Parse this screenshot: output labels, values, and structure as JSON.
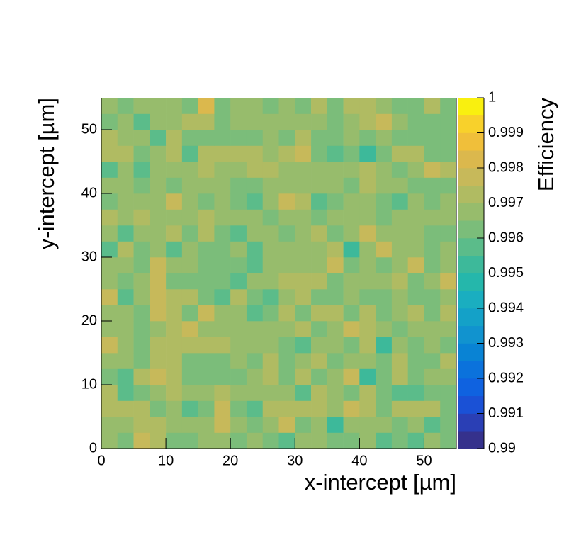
{
  "chart_data": {
    "type": "heatmap",
    "xlabel": "x-intercept [µm]",
    "ylabel": "y-intercept [µm]",
    "zlabel": "Efficiency",
    "xlim": [
      0,
      55
    ],
    "ylim": [
      0,
      55
    ],
    "zlim": [
      0.99,
      1
    ],
    "xticks": [
      0,
      10,
      20,
      30,
      40,
      50
    ],
    "yticks": [
      0,
      10,
      20,
      30,
      40,
      50
    ],
    "zticks": [
      0.99,
      0.991,
      0.992,
      0.993,
      0.994,
      0.995,
      0.996,
      0.997,
      0.998,
      0.999,
      1
    ],
    "xbins": [
      0,
      2.5,
      5,
      7.5,
      10,
      12.5,
      15,
      17.5,
      20,
      22.5,
      25,
      27.5,
      30,
      32.5,
      35,
      37.5,
      40,
      42.5,
      45,
      47.5,
      50,
      52.5,
      55
    ],
    "ybins": [
      0,
      2.5,
      5,
      7.5,
      10,
      12.5,
      15,
      17.5,
      20,
      22.5,
      25,
      27.5,
      30,
      32.5,
      35,
      37.5,
      40,
      42.5,
      45,
      47.5,
      50,
      52.5,
      55
    ],
    "colorscale": [
      "#35318c",
      "#2a3fb5",
      "#1a51d6",
      "#0f62e0",
      "#0b72dc",
      "#0983d4",
      "#1193cf",
      "#14a1c8",
      "#1aaec0",
      "#25b7ab",
      "#3db99a",
      "#5bbc8a",
      "#7bbd7a",
      "#97bc6c",
      "#b0bb62",
      "#c7b95a",
      "#dbb84d",
      "#f0bf3a",
      "#f8d12b",
      "#f9f00f"
    ],
    "z": [
      [
        0.9965,
        0.996,
        0.9975,
        0.997,
        0.996,
        0.996,
        0.9965,
        0.9965,
        0.996,
        0.9965,
        0.996,
        0.9955,
        0.9965,
        0.9965,
        0.996,
        0.996,
        0.9965,
        0.9955,
        0.996,
        0.9955,
        0.9965,
        0.996
      ],
      [
        0.9965,
        0.9965,
        0.997,
        0.997,
        0.9965,
        0.9965,
        0.9965,
        0.9975,
        0.9965,
        0.996,
        0.9965,
        0.9975,
        0.996,
        0.9965,
        0.995,
        0.9965,
        0.9965,
        0.9965,
        0.996,
        0.9965,
        0.9955,
        0.996
      ],
      [
        0.997,
        0.997,
        0.997,
        0.996,
        0.9965,
        0.9955,
        0.996,
        0.9975,
        0.996,
        0.9955,
        0.997,
        0.997,
        0.997,
        0.997,
        0.9965,
        0.9975,
        0.997,
        0.996,
        0.997,
        0.997,
        0.997,
        0.996
      ],
      [
        0.997,
        0.9955,
        0.996,
        0.9965,
        0.997,
        0.9965,
        0.9965,
        0.997,
        0.9965,
        0.9965,
        0.9965,
        0.9965,
        0.9955,
        0.997,
        0.9965,
        0.996,
        0.997,
        0.996,
        0.9955,
        0.9955,
        0.996,
        0.996
      ],
      [
        0.996,
        0.9955,
        0.997,
        0.9975,
        0.997,
        0.996,
        0.996,
        0.996,
        0.996,
        0.9965,
        0.997,
        0.996,
        0.997,
        0.996,
        0.9965,
        0.9975,
        0.995,
        0.996,
        0.997,
        0.996,
        0.9965,
        0.9965
      ],
      [
        0.9965,
        0.9965,
        0.996,
        0.997,
        0.997,
        0.996,
        0.996,
        0.996,
        0.9965,
        0.996,
        0.997,
        0.996,
        0.9965,
        0.997,
        0.996,
        0.9965,
        0.9965,
        0.996,
        0.997,
        0.996,
        0.996,
        0.997
      ],
      [
        0.9975,
        0.9965,
        0.996,
        0.997,
        0.997,
        0.997,
        0.997,
        0.997,
        0.9965,
        0.9965,
        0.9965,
        0.996,
        0.9955,
        0.9965,
        0.9965,
        0.996,
        0.997,
        0.995,
        0.9965,
        0.996,
        0.9965,
        0.996
      ],
      [
        0.9965,
        0.9965,
        0.996,
        0.9965,
        0.997,
        0.9975,
        0.9965,
        0.9965,
        0.9965,
        0.9965,
        0.9965,
        0.9965,
        0.997,
        0.996,
        0.9965,
        0.9975,
        0.997,
        0.9965,
        0.996,
        0.9965,
        0.9965,
        0.9965
      ],
      [
        0.9965,
        0.9965,
        0.996,
        0.9975,
        0.997,
        0.996,
        0.9975,
        0.9965,
        0.9965,
        0.9955,
        0.996,
        0.997,
        0.996,
        0.997,
        0.997,
        0.996,
        0.997,
        0.996,
        0.9965,
        0.997,
        0.996,
        0.997
      ],
      [
        0.9975,
        0.9955,
        0.9965,
        0.9975,
        0.997,
        0.997,
        0.996,
        0.9955,
        0.997,
        0.996,
        0.9955,
        0.9965,
        0.997,
        0.996,
        0.996,
        0.9965,
        0.996,
        0.996,
        0.9965,
        0.996,
        0.996,
        0.9965
      ],
      [
        0.9965,
        0.996,
        0.9965,
        0.9975,
        0.996,
        0.996,
        0.996,
        0.996,
        0.9955,
        0.9965,
        0.9965,
        0.997,
        0.997,
        0.997,
        0.996,
        0.9965,
        0.9965,
        0.9965,
        0.997,
        0.996,
        0.9965,
        0.9975
      ],
      [
        0.9965,
        0.9965,
        0.996,
        0.9975,
        0.9965,
        0.9965,
        0.996,
        0.996,
        0.996,
        0.9955,
        0.9965,
        0.9965,
        0.9965,
        0.9965,
        0.9975,
        0.996,
        0.9965,
        0.996,
        0.9965,
        0.9975,
        0.996,
        0.9965
      ],
      [
        0.9955,
        0.997,
        0.996,
        0.9965,
        0.9955,
        0.9965,
        0.996,
        0.996,
        0.9965,
        0.9955,
        0.9965,
        0.9965,
        0.9965,
        0.9965,
        0.997,
        0.995,
        0.9965,
        0.9975,
        0.9965,
        0.9965,
        0.996,
        0.9965
      ],
      [
        0.9965,
        0.9955,
        0.9965,
        0.9965,
        0.997,
        0.996,
        0.997,
        0.996,
        0.9955,
        0.9965,
        0.9965,
        0.996,
        0.9965,
        0.997,
        0.996,
        0.9965,
        0.9975,
        0.9965,
        0.9965,
        0.9965,
        0.996,
        0.996
      ],
      [
        0.997,
        0.9965,
        0.997,
        0.9965,
        0.9965,
        0.9965,
        0.997,
        0.9965,
        0.9965,
        0.9965,
        0.996,
        0.9965,
        0.9965,
        0.996,
        0.9965,
        0.9965,
        0.9965,
        0.996,
        0.9965,
        0.9965,
        0.9965,
        0.9965
      ],
      [
        0.996,
        0.9965,
        0.9965,
        0.9965,
        0.9975,
        0.9965,
        0.996,
        0.9965,
        0.996,
        0.9955,
        0.9965,
        0.9975,
        0.997,
        0.9955,
        0.996,
        0.9965,
        0.9965,
        0.996,
        0.9955,
        0.9965,
        0.996,
        0.9965
      ],
      [
        0.9965,
        0.9965,
        0.996,
        0.9965,
        0.996,
        0.9965,
        0.9965,
        0.9965,
        0.996,
        0.996,
        0.9965,
        0.9965,
        0.9965,
        0.9965,
        0.9965,
        0.996,
        0.997,
        0.9965,
        0.9965,
        0.996,
        0.996,
        0.996
      ],
      [
        0.9955,
        0.9965,
        0.9955,
        0.9965,
        0.9965,
        0.9965,
        0.997,
        0.9965,
        0.9965,
        0.997,
        0.997,
        0.9965,
        0.9965,
        0.9965,
        0.9965,
        0.9965,
        0.997,
        0.9965,
        0.996,
        0.9965,
        0.9975,
        0.997
      ],
      [
        0.997,
        0.997,
        0.996,
        0.9965,
        0.997,
        0.9955,
        0.997,
        0.997,
        0.997,
        0.997,
        0.9965,
        0.997,
        0.9975,
        0.996,
        0.9955,
        0.996,
        0.995,
        0.996,
        0.997,
        0.997,
        0.996,
        0.996
      ],
      [
        0.997,
        0.9965,
        0.9965,
        0.9955,
        0.997,
        0.996,
        0.996,
        0.996,
        0.996,
        0.996,
        0.9965,
        0.996,
        0.997,
        0.996,
        0.996,
        0.9965,
        0.996,
        0.9965,
        0.996,
        0.996,
        0.996,
        0.996
      ],
      [
        0.996,
        0.9965,
        0.9955,
        0.9965,
        0.9965,
        0.997,
        0.997,
        0.996,
        0.9965,
        0.9965,
        0.9965,
        0.9965,
        0.9965,
        0.9965,
        0.996,
        0.9965,
        0.997,
        0.9975,
        0.9965,
        0.996,
        0.996,
        0.996
      ],
      [
        0.9965,
        0.996,
        0.9965,
        0.9965,
        0.9965,
        0.996,
        0.998,
        0.996,
        0.9965,
        0.9965,
        0.996,
        0.9965,
        0.996,
        0.997,
        0.996,
        0.997,
        0.997,
        0.9965,
        0.996,
        0.996,
        0.997,
        0.996
      ]
    ]
  }
}
